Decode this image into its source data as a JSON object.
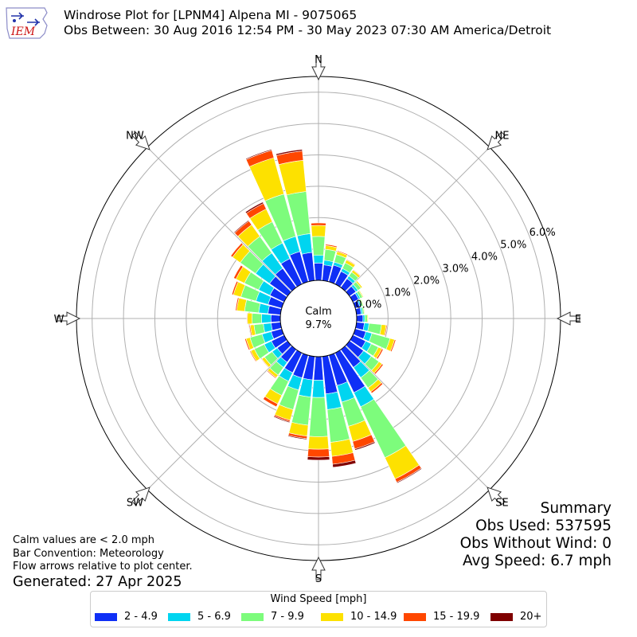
{
  "title": {
    "line1": "Windrose Plot for [LPNM4] Alpena  MI - 9075065",
    "line2": "Obs Between: 30 Aug 2016 12:54 PM - 30 May 2023 07:30 AM America/Detroit"
  },
  "logo": {
    "text": "IEM",
    "icon": "iem-logo-icon"
  },
  "footer": {
    "calm_note": "Calm values are < 2.0 mph",
    "bar_convention": "Bar Convention: Meteorology",
    "flow_note": "Flow arrows relative to plot center.",
    "generated": "Generated: 27 Apr 2025"
  },
  "summary": {
    "title": "Summary",
    "obs_used": "Obs Used: 537595",
    "obs_without_wind": "Obs Without Wind: 0",
    "avg_speed": "Avg Speed: 6.7 mph"
  },
  "legend": {
    "title": "Wind Speed [mph]",
    "items": [
      {
        "label": "2 - 4.9",
        "color": "#0f2ff6"
      },
      {
        "label": "5 - 6.9",
        "color": "#00d5f0"
      },
      {
        "label": "7 - 9.9",
        "color": "#7dfc7c"
      },
      {
        "label": "10 - 14.9",
        "color": "#fde100"
      },
      {
        "label": "15 - 19.9",
        "color": "#ff4700"
      },
      {
        "label": "20+",
        "color": "#7f0000"
      }
    ]
  },
  "chart_data": {
    "type": "windrose",
    "calm": {
      "label": "Calm",
      "value": "9.7%"
    },
    "radial_ticks": [
      "0.0%",
      "1.0%",
      "2.0%",
      "3.0%",
      "4.0%",
      "5.0%",
      "6.0%"
    ],
    "radial_max": 6.5,
    "directions": [
      "N",
      "NE",
      "E",
      "SE",
      "S",
      "SW",
      "W",
      "NW"
    ],
    "grid": true,
    "bins": [
      "2 - 4.9",
      "5 - 6.9",
      "7 - 9.9",
      "10 - 14.9",
      "15 - 19.9",
      "20+"
    ],
    "sectors": [
      {
        "dir": 0,
        "values": [
          0.55,
          0.25,
          0.6,
          0.35,
          0.08,
          0.0
        ]
      },
      {
        "dir": 10,
        "values": [
          0.5,
          0.15,
          0.35,
          0.12,
          0.04,
          0.0
        ]
      },
      {
        "dir": 20,
        "values": [
          0.55,
          0.1,
          0.25,
          0.1,
          0.03,
          0.0
        ]
      },
      {
        "dir": 30,
        "values": [
          0.45,
          0.1,
          0.2,
          0.1,
          0.02,
          0.0
        ]
      },
      {
        "dir": 40,
        "values": [
          0.35,
          0.1,
          0.15,
          0.08,
          0.02,
          0.0
        ]
      },
      {
        "dir": 50,
        "values": [
          0.25,
          0.08,
          0.12,
          0.05,
          0.01,
          0.0
        ]
      },
      {
        "dir": 60,
        "values": [
          0.2,
          0.06,
          0.08,
          0.03,
          0.01,
          0.0
        ]
      },
      {
        "dir": 70,
        "values": [
          0.15,
          0.05,
          0.06,
          0.02,
          0.0,
          0.0
        ]
      },
      {
        "dir": 80,
        "values": [
          0.15,
          0.05,
          0.05,
          0.02,
          0.0,
          0.0
        ]
      },
      {
        "dir": 90,
        "values": [
          0.2,
          0.06,
          0.08,
          0.03,
          0.01,
          0.0
        ]
      },
      {
        "dir": 100,
        "values": [
          0.25,
          0.15,
          0.4,
          0.15,
          0.03,
          0.0
        ]
      },
      {
        "dir": 110,
        "values": [
          0.35,
          0.2,
          0.6,
          0.15,
          0.04,
          0.0
        ]
      },
      {
        "dir": 120,
        "values": [
          0.45,
          0.2,
          0.25,
          0.12,
          0.05,
          0.0
        ]
      },
      {
        "dir": 130,
        "values": [
          0.55,
          0.3,
          0.3,
          0.12,
          0.05,
          0.0
        ]
      },
      {
        "dir": 140,
        "values": [
          0.7,
          0.4,
          0.4,
          0.15,
          0.06,
          0.0
        ]
      },
      {
        "dir": 150,
        "values": [
          1.4,
          0.5,
          1.8,
          0.75,
          0.12,
          0.03
        ]
      },
      {
        "dir": 160,
        "values": [
          1.0,
          0.55,
          0.8,
          0.5,
          0.25,
          0.04
        ]
      },
      {
        "dir": 170,
        "values": [
          1.2,
          0.5,
          1.05,
          0.45,
          0.25,
          0.1
        ]
      },
      {
        "dir": 180,
        "values": [
          0.75,
          0.55,
          1.25,
          0.4,
          0.25,
          0.1
        ]
      },
      {
        "dir": 190,
        "values": [
          0.75,
          0.55,
          0.9,
          0.35,
          0.08,
          0.03
        ]
      },
      {
        "dir": 200,
        "values": [
          0.75,
          0.4,
          0.65,
          0.35,
          0.05,
          0.03
        ]
      },
      {
        "dir": 210,
        "values": [
          0.7,
          0.3,
          0.5,
          0.3,
          0.1,
          0.0
        ]
      },
      {
        "dir": 220,
        "values": [
          0.5,
          0.2,
          0.3,
          0.1,
          0.03,
          0.0
        ]
      },
      {
        "dir": 230,
        "values": [
          0.4,
          0.2,
          0.3,
          0.1,
          0.02,
          0.0
        ]
      },
      {
        "dir": 240,
        "values": [
          0.45,
          0.25,
          0.35,
          0.13,
          0.03,
          0.0
        ]
      },
      {
        "dir": 250,
        "values": [
          0.35,
          0.3,
          0.4,
          0.13,
          0.04,
          0.0
        ]
      },
      {
        "dir": 260,
        "values": [
          0.3,
          0.25,
          0.3,
          0.12,
          0.03,
          0.0
        ]
      },
      {
        "dir": 270,
        "values": [
          0.3,
          0.3,
          0.3,
          0.15,
          0.02,
          0.0
        ]
      },
      {
        "dir": 280,
        "values": [
          0.4,
          0.3,
          0.45,
          0.25,
          0.04,
          0.0
        ]
      },
      {
        "dir": 290,
        "values": [
          0.45,
          0.4,
          0.5,
          0.25,
          0.05,
          0.0
        ]
      },
      {
        "dir": 300,
        "values": [
          0.5,
          0.4,
          0.5,
          0.3,
          0.08,
          0.0
        ]
      },
      {
        "dir": 310,
        "values": [
          0.7,
          0.55,
          0.6,
          0.3,
          0.07,
          0.0
        ]
      },
      {
        "dir": 320,
        "values": [
          0.75,
          0.6,
          0.65,
          0.45,
          0.15,
          0.03
        ]
      },
      {
        "dir": 330,
        "values": [
          0.9,
          0.55,
          0.75,
          0.45,
          0.2,
          0.05
        ]
      },
      {
        "dir": 340,
        "values": [
          1.0,
          0.5,
          1.4,
          1.2,
          0.25,
          0.03
        ]
      },
      {
        "dir": 350,
        "values": [
          0.9,
          0.6,
          1.35,
          1.0,
          0.3,
          0.05
        ]
      }
    ]
  }
}
